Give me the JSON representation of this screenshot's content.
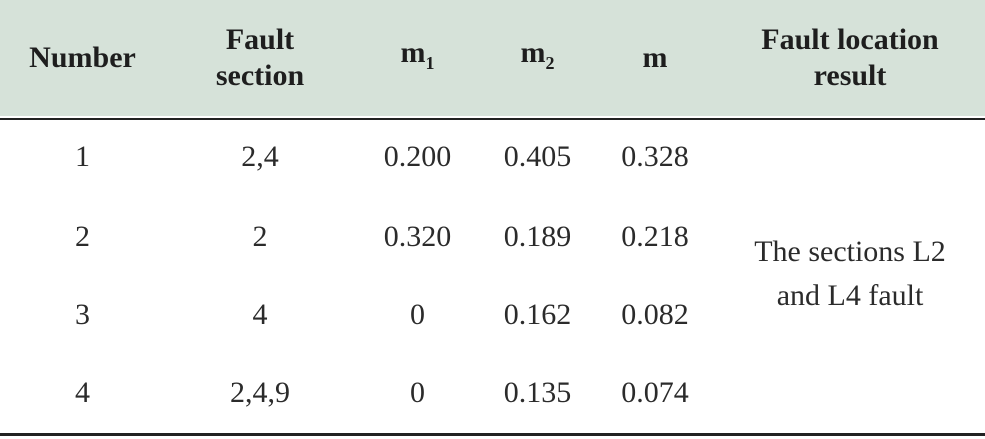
{
  "table": {
    "headers": [
      {
        "base": "Number",
        "line2": ""
      },
      {
        "base": "Fault",
        "line2": "section"
      },
      {
        "base": "m",
        "sub": "1"
      },
      {
        "base": "m",
        "sub": "2"
      },
      {
        "base": "m"
      },
      {
        "base": "Fault location",
        "line2": "result"
      }
    ],
    "rows": [
      {
        "number": "1",
        "section": "2,4",
        "m1": "0.200",
        "m2": "0.405",
        "m": "0.328"
      },
      {
        "number": "2",
        "section": "2",
        "m1": "0.320",
        "m2": "0.189",
        "m": "0.218"
      },
      {
        "number": "3",
        "section": "4",
        "m1": "0",
        "m2": "0.162",
        "m": "0.082"
      },
      {
        "number": "4",
        "section": "2,4,9",
        "m1": "0",
        "m2": "0.135",
        "m": "0.074"
      }
    ],
    "result": {
      "line1": "The sections L2",
      "line2": "and L4 fault"
    }
  }
}
